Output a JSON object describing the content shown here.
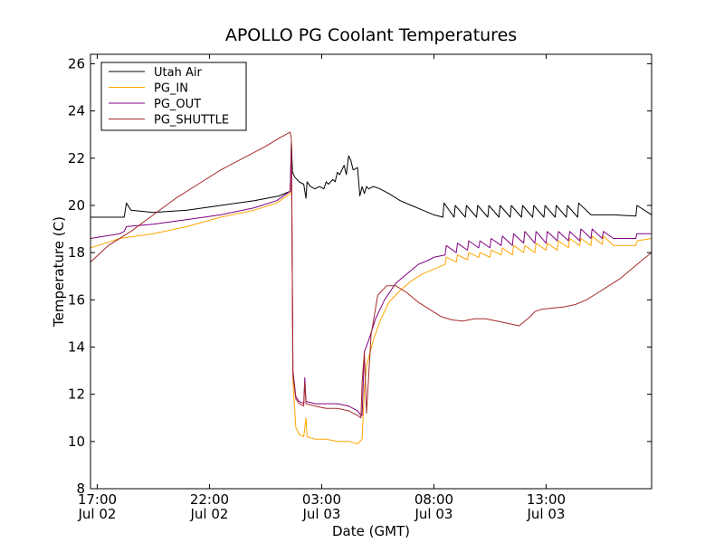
{
  "chart_data": {
    "type": "line",
    "title": "APOLLO PG Coolant Temperatures",
    "xlabel": "Date (GMT)",
    "ylabel": "Temperature (C)",
    "x_unit": "hours since 2013-07-02 17:00 GMT",
    "xlim": [
      -0.3,
      24.7
    ],
    "ylim": [
      8,
      26.4
    ],
    "yticks": [
      8,
      10,
      12,
      14,
      16,
      18,
      20,
      22,
      24,
      26
    ],
    "xticks": [
      {
        "value": 0,
        "line1": "17:00",
        "line2": "Jul 02"
      },
      {
        "value": 5,
        "line1": "22:00",
        "line2": "Jul 02"
      },
      {
        "value": 10,
        "line1": "03:00",
        "line2": "Jul 03"
      },
      {
        "value": 15,
        "line1": "08:00",
        "line2": "Jul 03"
      },
      {
        "value": 20,
        "line1": "13:00",
        "line2": "Jul 03"
      }
    ],
    "legend_position": "top-left",
    "series": [
      {
        "name": "Utah Air",
        "color": "#000000",
        "x": [
          -0.3,
          1.2,
          1.3,
          1.5,
          2.5,
          4.0,
          5.5,
          7.0,
          8.1,
          8.6,
          8.65,
          8.7,
          8.8,
          9.0,
          9.2,
          9.3,
          9.35,
          9.5,
          9.7,
          9.9,
          10.1,
          10.2,
          10.3,
          10.5,
          10.6,
          10.7,
          10.8,
          11.0,
          11.1,
          11.2,
          11.3,
          11.4,
          11.6,
          11.7,
          11.8,
          11.9,
          12.0,
          12.1,
          12.3,
          12.6,
          13.0,
          13.5,
          14.0,
          14.5,
          15.0,
          15.4,
          15.45,
          15.9,
          15.95,
          16.4,
          16.45,
          16.9,
          16.95,
          17.4,
          17.45,
          17.9,
          17.95,
          18.4,
          18.45,
          18.9,
          18.95,
          19.4,
          19.45,
          19.9,
          19.95,
          20.4,
          20.45,
          20.9,
          20.95,
          21.4,
          21.45,
          22.0,
          23.0,
          24.0,
          24.05,
          24.7
        ],
        "y": [
          19.5,
          19.5,
          20.1,
          19.8,
          19.7,
          19.8,
          20.0,
          20.2,
          20.4,
          20.6,
          22.7,
          21.4,
          21.2,
          21.0,
          20.9,
          20.3,
          21.0,
          20.8,
          20.7,
          20.8,
          20.7,
          21.0,
          20.9,
          21.1,
          21.0,
          21.4,
          21.3,
          21.7,
          21.3,
          22.1,
          21.9,
          21.5,
          21.6,
          20.4,
          20.8,
          20.5,
          20.8,
          20.7,
          20.8,
          20.7,
          20.5,
          20.2,
          20.0,
          19.8,
          19.6,
          19.5,
          20.1,
          19.5,
          20.0,
          19.5,
          20.0,
          19.5,
          20.0,
          19.5,
          20.0,
          19.5,
          20.0,
          19.5,
          20.0,
          19.5,
          20.0,
          19.5,
          20.0,
          19.5,
          20.0,
          19.5,
          20.0,
          19.5,
          20.0,
          19.5,
          20.1,
          19.6,
          19.6,
          19.55,
          20.0,
          19.6
        ]
      },
      {
        "name": "PG_IN",
        "color": "#FFA500",
        "x": [
          -0.3,
          1.0,
          2.5,
          4.0,
          5.5,
          7.0,
          8.0,
          8.6,
          8.65,
          8.72,
          8.85,
          9.0,
          9.2,
          9.3,
          9.35,
          9.7,
          10.2,
          10.7,
          11.2,
          11.6,
          11.8,
          11.9,
          12.0,
          12.3,
          12.6,
          13.0,
          13.5,
          14.0,
          14.5,
          15.0,
          15.5,
          15.55,
          16.0,
          16.05,
          16.5,
          16.55,
          17.0,
          17.05,
          17.5,
          17.55,
          18.0,
          18.05,
          18.5,
          18.55,
          19.0,
          19.05,
          19.5,
          19.55,
          20.0,
          20.05,
          20.5,
          20.55,
          21.0,
          21.05,
          21.5,
          21.55,
          22.0,
          22.05,
          22.5,
          22.55,
          23.0,
          23.5,
          24.0,
          24.05,
          24.7
        ],
        "y": [
          18.2,
          18.6,
          18.8,
          19.1,
          19.5,
          19.8,
          20.1,
          20.5,
          22.5,
          12.5,
          10.6,
          10.3,
          10.2,
          11.0,
          10.2,
          10.1,
          10.1,
          10.0,
          10.0,
          9.9,
          10.1,
          12.2,
          13.2,
          14.3,
          15.1,
          15.9,
          16.4,
          16.8,
          17.1,
          17.3,
          17.5,
          17.8,
          17.6,
          17.9,
          17.7,
          18.0,
          17.8,
          18.0,
          17.8,
          18.1,
          17.9,
          18.2,
          17.9,
          18.3,
          18.0,
          18.3,
          18.0,
          18.4,
          18.1,
          18.4,
          18.1,
          18.5,
          18.2,
          18.6,
          18.3,
          18.6,
          18.3,
          18.7,
          18.35,
          18.7,
          18.3,
          18.3,
          18.3,
          18.5,
          18.6
        ]
      },
      {
        "name": "PG_OUT",
        "color": "#800080",
        "x": [
          -0.3,
          1.0,
          1.2,
          1.3,
          2.5,
          4.0,
          5.5,
          7.0,
          8.0,
          8.6,
          8.65,
          8.72,
          8.85,
          9.0,
          9.2,
          9.25,
          9.3,
          9.7,
          10.2,
          10.7,
          11.2,
          11.6,
          11.75,
          11.8,
          11.9,
          12.1,
          12.4,
          12.8,
          13.3,
          13.8,
          14.3,
          14.8,
          15.0,
          15.5,
          15.55,
          16.0,
          16.05,
          16.5,
          16.55,
          17.0,
          17.05,
          17.5,
          17.55,
          18.0,
          18.05,
          18.5,
          18.55,
          19.0,
          19.05,
          19.5,
          19.55,
          20.0,
          20.05,
          20.5,
          20.55,
          21.0,
          21.05,
          21.5,
          21.55,
          22.0,
          22.05,
          22.5,
          22.55,
          23.0,
          23.5,
          24.0,
          24.05,
          24.7
        ],
        "y": [
          18.6,
          18.8,
          18.9,
          19.1,
          19.2,
          19.4,
          19.6,
          19.9,
          20.2,
          20.6,
          22.7,
          13.0,
          11.9,
          11.7,
          11.6,
          12.7,
          11.7,
          11.6,
          11.6,
          11.6,
          11.5,
          11.3,
          11.1,
          11.1,
          13.8,
          14.3,
          15.2,
          16.0,
          16.7,
          17.1,
          17.5,
          17.7,
          17.8,
          17.9,
          18.3,
          18.0,
          18.4,
          18.1,
          18.5,
          18.2,
          18.5,
          18.2,
          18.6,
          18.3,
          18.7,
          18.3,
          18.8,
          18.4,
          18.9,
          18.4,
          18.9,
          18.4,
          18.9,
          18.5,
          18.9,
          18.5,
          18.9,
          18.5,
          19.0,
          18.6,
          19.0,
          18.6,
          18.9,
          18.6,
          18.6,
          18.6,
          18.8,
          18.8
        ]
      },
      {
        "name": "PG_SHUTTLE",
        "color": "#A52A2A",
        "x": [
          -0.3,
          0.5,
          1.5,
          2.5,
          3.5,
          4.5,
          5.5,
          6.5,
          7.5,
          8.2,
          8.6,
          8.65,
          8.72,
          8.85,
          9.0,
          9.2,
          9.25,
          9.3,
          9.7,
          10.2,
          10.7,
          11.2,
          11.6,
          11.75,
          11.8,
          11.9,
          12.0,
          12.2,
          12.5,
          12.9,
          13.3,
          13.8,
          14.3,
          14.8,
          15.3,
          15.8,
          16.3,
          16.8,
          17.3,
          17.8,
          18.3,
          18.8,
          19.3,
          19.5,
          19.8,
          20.3,
          20.8,
          21.3,
          21.8,
          22.3,
          22.8,
          23.3,
          23.8,
          24.3,
          24.7
        ],
        "y": [
          17.6,
          18.3,
          18.9,
          19.6,
          20.3,
          20.9,
          21.5,
          22.0,
          22.5,
          22.9,
          23.1,
          22.8,
          12.8,
          11.8,
          11.6,
          11.5,
          12.5,
          11.6,
          11.5,
          11.4,
          11.4,
          11.3,
          11.1,
          11.0,
          12.5,
          13.8,
          11.2,
          14.5,
          16.2,
          16.6,
          16.6,
          16.3,
          15.9,
          15.6,
          15.3,
          15.15,
          15.1,
          15.2,
          15.2,
          15.1,
          15.0,
          14.9,
          15.3,
          15.5,
          15.6,
          15.65,
          15.7,
          15.8,
          16.0,
          16.3,
          16.6,
          16.9,
          17.3,
          17.7,
          18.0
        ]
      }
    ]
  }
}
